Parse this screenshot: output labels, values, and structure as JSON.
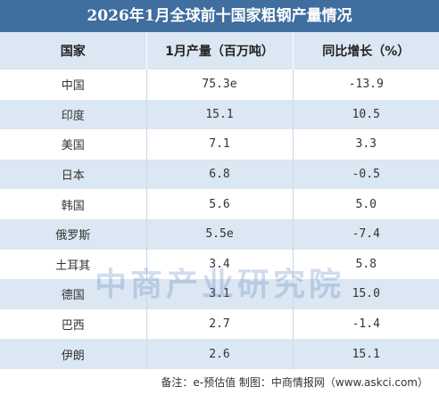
{
  "header": {
    "title": "2026年1月全球前十国家粗钢产量情况"
  },
  "table": {
    "columns": [
      "国家",
      "1月产量（百万吨）",
      "同比增长（%）"
    ],
    "rows": [
      [
        "中国",
        "75.3e",
        "-13.9"
      ],
      [
        "印度",
        "15.1",
        "10.5"
      ],
      [
        "美国",
        "7.1",
        "3.3"
      ],
      [
        "日本",
        "6.8",
        "-0.5"
      ],
      [
        "韩国",
        "5.6",
        "5.0"
      ],
      [
        "俄罗斯",
        "5.5e",
        "-7.4"
      ],
      [
        "土耳其",
        "3.4",
        "5.8"
      ],
      [
        "德国",
        "3.1",
        "15.0"
      ],
      [
        "巴西",
        "2.7",
        "-1.4"
      ],
      [
        "伊朗",
        "2.6",
        "15.1"
      ]
    ]
  },
  "watermark": "中商产业研究院",
  "footer": {
    "note": "备注：e-预估值  制图：中商情报网（www.askci.com）"
  }
}
